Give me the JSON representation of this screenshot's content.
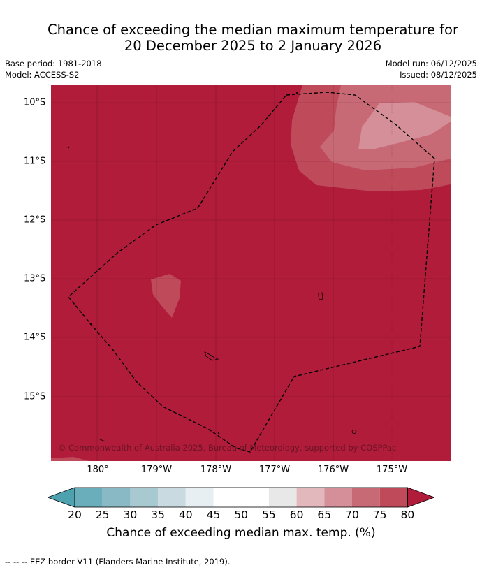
{
  "title": {
    "line1": "Chance of exceeding the median maximum temperature for",
    "line2": "20 December 2025 to 2 January 2026"
  },
  "meta": {
    "base_period": "Base period: 1981-2018",
    "model": "Model: ACCESS-S2",
    "model_run": "Model run: 06/12/2025",
    "issued": "Issued: 08/12/2025"
  },
  "map": {
    "latitude_labels": [
      "10°S",
      "11°S",
      "12°S",
      "13°S",
      "14°S",
      "15°S"
    ],
    "longitude_labels": [
      "180°",
      "179°W",
      "178°W",
      "177°W",
      "176°W",
      "175°W"
    ],
    "copyright": "© Commonwealth of Australia 2025, Bureau of Meteorology, supported by COSPPac",
    "colors": {
      "c60_65": "#e2b8bd",
      "c65_70": "#d48f98",
      "c70_75": "#c86a76",
      "c75_80": "#bf4a5a",
      "c80_plus": "#b01c3a"
    }
  },
  "colorbar": {
    "ticks": [
      "20",
      "25",
      "30",
      "35",
      "40",
      "45",
      "50",
      "55",
      "60",
      "65",
      "70",
      "75",
      "80"
    ],
    "colors": [
      "#4ea2b0",
      "#6aaebc",
      "#8ab9c6",
      "#a8c9d0",
      "#c9dbe0",
      "#e8eff3",
      "#ffffff",
      "#ffffff",
      "#e8e8e8",
      "#e2b8bd",
      "#d48f98",
      "#c86a76",
      "#bf4a5a",
      "#b01c3a"
    ],
    "title": "Chance of exceeding median max. temp. (%)"
  },
  "footnote": "--  --  -- EEZ border V11 (Flanders Marine Institute, 2019)."
}
